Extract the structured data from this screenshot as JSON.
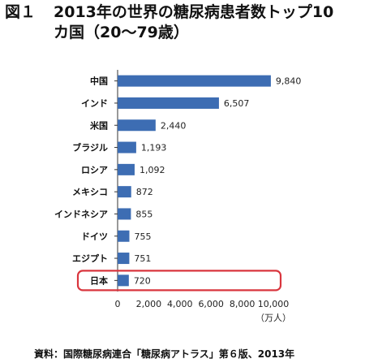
{
  "title": {
    "figure_label": "図１",
    "line1": "2013年の世界の糖尿病患者数トップ10",
    "line2": "カ国（20〜79歳）"
  },
  "source": "資料：国際糖尿病連合「糖尿病アトラス」第６版、2013年",
  "highlight_category": "日本",
  "colors": {
    "bar": "#3d6db3",
    "highlight_border": "#d9363e",
    "axis": "#333333"
  },
  "chart_data": {
    "type": "bar",
    "orientation": "horizontal",
    "categories": [
      "中国",
      "インド",
      "米国",
      "ブラジル",
      "ロシア",
      "メキシコ",
      "インドネシア",
      "ドイツ",
      "エジプト",
      "日本"
    ],
    "values": [
      9840,
      6507,
      2440,
      1193,
      1092,
      872,
      855,
      755,
      751,
      720
    ],
    "value_labels": [
      "9,840",
      "6,507",
      "2,440",
      "1,193",
      "1,092",
      "872",
      "855",
      "755",
      "751",
      "720"
    ],
    "xlim": [
      0,
      10000
    ],
    "x_ticks": [
      "0",
      "2,000",
      "4,000",
      "6,000",
      "8,000",
      "10,000"
    ],
    "x_tick_values": [
      0,
      2000,
      4000,
      6000,
      8000,
      10000
    ],
    "xlabel": "（万人）",
    "grid": false
  }
}
